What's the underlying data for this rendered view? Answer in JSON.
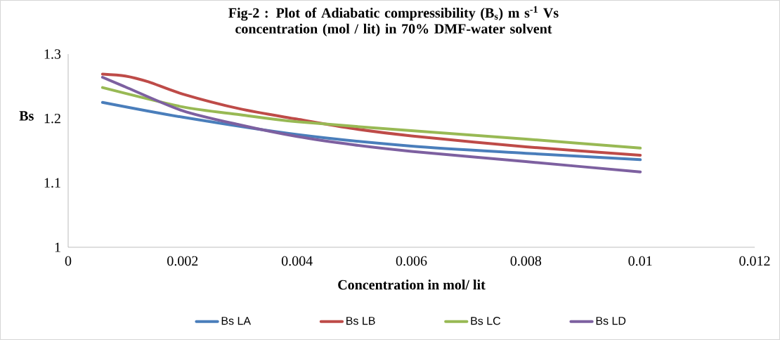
{
  "chart_data": {
    "type": "line",
    "title": "Fig-2 : Plot of Adiabatic compressibility (B$_{s}$) m s$^{-1}$ Vs concentration (mol / lit) in 70% DMF-water solvent",
    "xlabel": "Concentration in mol/ lit",
    "ylabel": "Bs",
    "xlim": [
      0,
      0.012
    ],
    "ylim": [
      1,
      1.3
    ],
    "xticks": [
      0,
      0.002,
      0.004,
      0.006,
      0.008,
      0.01,
      0.012
    ],
    "yticks": [
      1,
      1.1,
      1.2,
      1.3
    ],
    "legend": "bottom",
    "series": [
      {
        "name": "Bs LA",
        "color": "#4a7ebb",
        "x": [
          0.0006,
          0.002,
          0.004,
          0.006,
          0.008,
          0.01
        ],
        "values": [
          1.225,
          1.202,
          1.175,
          1.157,
          1.146,
          1.136
        ]
      },
      {
        "name": "Bs LB",
        "color": "#be4b48",
        "x": [
          0.0006,
          0.001,
          0.0014,
          0.002,
          0.003,
          0.004,
          0.005,
          0.006,
          0.008,
          0.01
        ],
        "values": [
          1.269,
          1.266,
          1.257,
          1.238,
          1.215,
          1.199,
          1.184,
          1.173,
          1.156,
          1.143
        ]
      },
      {
        "name": "Bs LC",
        "color": "#98b954",
        "x": [
          0.0006,
          0.002,
          0.003,
          0.004,
          0.006,
          0.008,
          0.01
        ],
        "values": [
          1.248,
          1.218,
          1.206,
          1.195,
          1.181,
          1.168,
          1.154
        ]
      },
      {
        "name": "Bs LD",
        "color": "#7d60a0",
        "x": [
          0.0006,
          0.001,
          0.002,
          0.003,
          0.004,
          0.005,
          0.006,
          0.008,
          0.01
        ],
        "values": [
          1.264,
          1.249,
          1.212,
          1.19,
          1.172,
          1.159,
          1.149,
          1.133,
          1.117
        ]
      }
    ]
  }
}
